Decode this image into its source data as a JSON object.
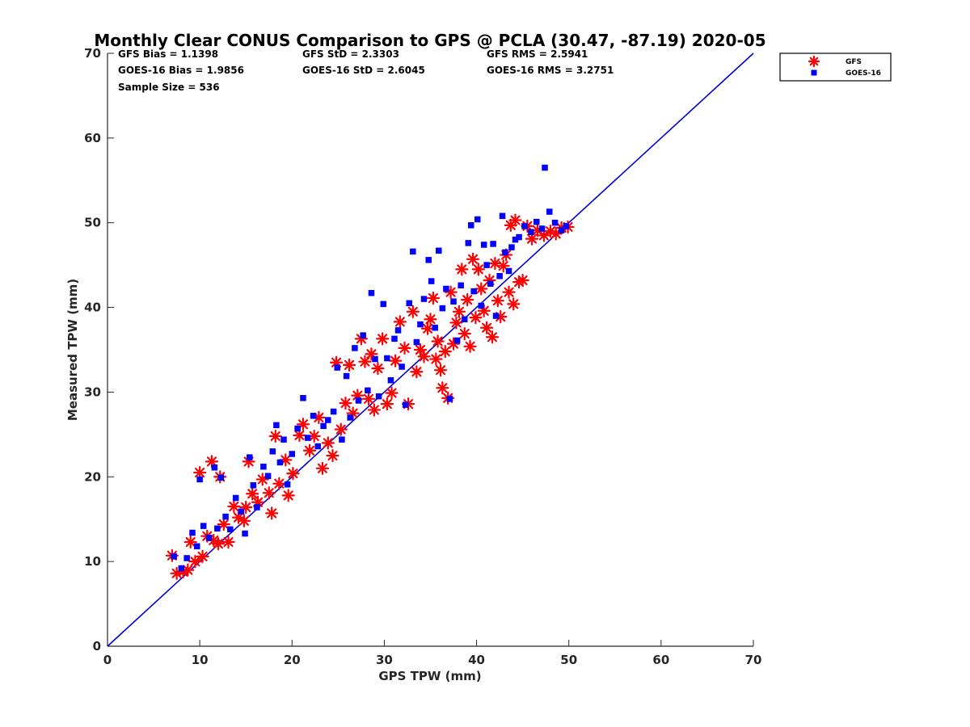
{
  "chart_data": {
    "type": "scatter",
    "title": "Monthly Clear CONUS Comparison to GPS @ PCLA (30.47, -87.19) 2020-05",
    "xlabel": "GPS TPW (mm)",
    "ylabel": "Measured TPW (mm)",
    "xlim": [
      0,
      70
    ],
    "ylim": [
      0,
      70
    ],
    "xticks": [
      "0",
      "10",
      "20",
      "30",
      "40",
      "50",
      "60",
      "70"
    ],
    "yticks": [
      "0",
      "10",
      "20",
      "30",
      "40",
      "50",
      "60",
      "70"
    ],
    "grid": false,
    "legend_position": "top-right, outside axes",
    "stats": [
      "GFS Bias = 1.1398",
      "GFS StD = 2.3303",
      "GFS RMS = 2.5941",
      "GOES-16 Bias = 1.9856",
      "GOES-16 StD = 2.6045",
      "GOES-16 RMS = 3.2751",
      "Sample Size = 536"
    ],
    "reference_line": {
      "x": [
        0,
        70
      ],
      "y": [
        0,
        70
      ],
      "color": "#0000dd"
    },
    "series": [
      {
        "name": "GFS",
        "marker": "asterisk",
        "color": "#ff0000",
        "points": [
          [
            7.0,
            10.7
          ],
          [
            7.5,
            8.6
          ],
          [
            8.2,
            8.8
          ],
          [
            8.7,
            9.0
          ],
          [
            9.0,
            12.3
          ],
          [
            9.5,
            10.0
          ],
          [
            10.0,
            20.5
          ],
          [
            10.3,
            10.6
          ],
          [
            10.8,
            13.0
          ],
          [
            11.3,
            21.8
          ],
          [
            11.5,
            12.5
          ],
          [
            12.0,
            12.1
          ],
          [
            12.2,
            20.0
          ],
          [
            12.6,
            14.4
          ],
          [
            13.1,
            12.3
          ],
          [
            13.7,
            16.5
          ],
          [
            14.2,
            15.2
          ],
          [
            14.8,
            14.8
          ],
          [
            15.0,
            16.4
          ],
          [
            15.3,
            21.8
          ],
          [
            15.7,
            18.0
          ],
          [
            16.3,
            17.0
          ],
          [
            16.8,
            19.7
          ],
          [
            17.5,
            18.1
          ],
          [
            17.8,
            15.7
          ],
          [
            18.2,
            24.8
          ],
          [
            18.6,
            19.2
          ],
          [
            19.3,
            22.0
          ],
          [
            19.6,
            17.8
          ],
          [
            20.1,
            20.4
          ],
          [
            20.8,
            24.9
          ],
          [
            21.2,
            26.2
          ],
          [
            21.9,
            23.1
          ],
          [
            22.4,
            24.8
          ],
          [
            22.9,
            27.0
          ],
          [
            23.3,
            21.0
          ],
          [
            23.9,
            24.0
          ],
          [
            24.4,
            22.5
          ],
          [
            24.8,
            33.5
          ],
          [
            25.3,
            25.6
          ],
          [
            25.8,
            28.7
          ],
          [
            26.2,
            33.2
          ],
          [
            26.6,
            27.5
          ],
          [
            27.1,
            29.6
          ],
          [
            27.5,
            36.3
          ],
          [
            27.9,
            33.6
          ],
          [
            28.3,
            29.2
          ],
          [
            28.6,
            34.5
          ],
          [
            28.9,
            27.9
          ],
          [
            29.3,
            32.8
          ],
          [
            29.8,
            36.3
          ],
          [
            30.3,
            28.6
          ],
          [
            30.8,
            29.9
          ],
          [
            31.2,
            33.7
          ],
          [
            31.7,
            38.3
          ],
          [
            32.2,
            35.2
          ],
          [
            32.6,
            28.6
          ],
          [
            33.1,
            39.5
          ],
          [
            33.5,
            32.4
          ],
          [
            33.9,
            35.0
          ],
          [
            34.3,
            34.2
          ],
          [
            34.7,
            37.5
          ],
          [
            35.0,
            38.6
          ],
          [
            35.3,
            41.1
          ],
          [
            35.6,
            33.9
          ],
          [
            35.8,
            36.0
          ],
          [
            36.1,
            32.6
          ],
          [
            36.3,
            30.5
          ],
          [
            36.6,
            34.8
          ],
          [
            36.9,
            29.3
          ],
          [
            37.2,
            41.8
          ],
          [
            37.5,
            35.7
          ],
          [
            37.8,
            38.2
          ],
          [
            38.1,
            39.5
          ],
          [
            38.4,
            44.5
          ],
          [
            38.7,
            36.9
          ],
          [
            39.0,
            40.9
          ],
          [
            39.3,
            35.4
          ],
          [
            39.6,
            45.7
          ],
          [
            39.9,
            38.8
          ],
          [
            40.2,
            44.5
          ],
          [
            40.5,
            42.2
          ],
          [
            40.8,
            39.6
          ],
          [
            41.1,
            37.6
          ],
          [
            41.4,
            43.2
          ],
          [
            41.7,
            36.5
          ],
          [
            42.0,
            45.2
          ],
          [
            42.3,
            40.8
          ],
          [
            42.6,
            38.9
          ],
          [
            42.9,
            44.9
          ],
          [
            43.2,
            46.2
          ],
          [
            43.5,
            41.8
          ],
          [
            43.7,
            49.7
          ],
          [
            44.0,
            40.4
          ],
          [
            44.2,
            50.3
          ],
          [
            44.6,
            43.0
          ],
          [
            45.0,
            43.2
          ],
          [
            45.5,
            49.6
          ],
          [
            46.0,
            48.1
          ],
          [
            46.6,
            49.1
          ],
          [
            47.3,
            48.5
          ],
          [
            48.0,
            49.0
          ],
          [
            48.6,
            48.7
          ],
          [
            49.2,
            49.4
          ],
          [
            49.9,
            49.5
          ]
        ]
      },
      {
        "name": "GOES-16",
        "marker": "square",
        "color": "#0000ff",
        "points": [
          [
            7.2,
            10.6
          ],
          [
            8.0,
            9.2
          ],
          [
            8.6,
            10.4
          ],
          [
            9.2,
            13.4
          ],
          [
            9.7,
            11.8
          ],
          [
            10.0,
            19.7
          ],
          [
            10.4,
            14.2
          ],
          [
            11.0,
            12.8
          ],
          [
            11.6,
            21.1
          ],
          [
            11.9,
            13.9
          ],
          [
            12.3,
            19.9
          ],
          [
            12.8,
            15.3
          ],
          [
            13.3,
            13.8
          ],
          [
            13.9,
            17.5
          ],
          [
            14.5,
            15.9
          ],
          [
            14.9,
            13.3
          ],
          [
            15.4,
            22.3
          ],
          [
            15.8,
            19.0
          ],
          [
            16.2,
            16.4
          ],
          [
            16.9,
            21.2
          ],
          [
            17.4,
            20.1
          ],
          [
            17.9,
            23.0
          ],
          [
            18.3,
            26.1
          ],
          [
            18.7,
            21.7
          ],
          [
            19.1,
            24.4
          ],
          [
            19.5,
            19.1
          ],
          [
            20.0,
            22.7
          ],
          [
            20.6,
            25.7
          ],
          [
            21.2,
            29.3
          ],
          [
            21.7,
            24.6
          ],
          [
            22.3,
            27.2
          ],
          [
            22.8,
            23.6
          ],
          [
            23.4,
            26.0
          ],
          [
            23.9,
            26.7
          ],
          [
            24.5,
            27.7
          ],
          [
            24.9,
            32.9
          ],
          [
            25.4,
            24.4
          ],
          [
            25.9,
            31.9
          ],
          [
            26.3,
            27.0
          ],
          [
            26.8,
            35.2
          ],
          [
            27.2,
            29.0
          ],
          [
            27.7,
            36.7
          ],
          [
            28.2,
            30.2
          ],
          [
            28.6,
            41.7
          ],
          [
            29.0,
            33.9
          ],
          [
            29.4,
            29.5
          ],
          [
            29.9,
            40.4
          ],
          [
            30.3,
            34.0
          ],
          [
            30.7,
            31.4
          ],
          [
            31.1,
            36.3
          ],
          [
            31.5,
            37.3
          ],
          [
            31.9,
            33.0
          ],
          [
            32.3,
            28.5
          ],
          [
            32.7,
            40.5
          ],
          [
            33.1,
            46.6
          ],
          [
            33.5,
            35.9
          ],
          [
            33.9,
            38.0
          ],
          [
            34.3,
            41.0
          ],
          [
            34.8,
            45.6
          ],
          [
            35.1,
            43.1
          ],
          [
            35.5,
            37.6
          ],
          [
            35.9,
            46.7
          ],
          [
            36.3,
            39.9
          ],
          [
            36.7,
            42.2
          ],
          [
            37.1,
            29.2
          ],
          [
            37.5,
            40.7
          ],
          [
            37.9,
            36.1
          ],
          [
            38.3,
            42.6
          ],
          [
            38.7,
            38.6
          ],
          [
            39.1,
            47.6
          ],
          [
            39.4,
            49.7
          ],
          [
            39.7,
            41.9
          ],
          [
            40.1,
            50.4
          ],
          [
            40.5,
            40.2
          ],
          [
            40.8,
            47.4
          ],
          [
            41.1,
            45.0
          ],
          [
            41.5,
            42.8
          ],
          [
            41.8,
            47.5
          ],
          [
            42.1,
            39.0
          ],
          [
            42.5,
            43.7
          ],
          [
            42.8,
            50.8
          ],
          [
            43.1,
            46.5
          ],
          [
            43.5,
            44.3
          ],
          [
            43.8,
            47.1
          ],
          [
            44.2,
            48.0
          ],
          [
            44.6,
            48.3
          ],
          [
            45.2,
            49.6
          ],
          [
            45.9,
            48.9
          ],
          [
            46.5,
            50.1
          ],
          [
            47.1,
            49.3
          ],
          [
            47.4,
            56.5
          ],
          [
            47.9,
            51.3
          ],
          [
            48.5,
            50.0
          ],
          [
            49.2,
            49.1
          ],
          [
            49.7,
            49.6
          ]
        ]
      }
    ]
  }
}
